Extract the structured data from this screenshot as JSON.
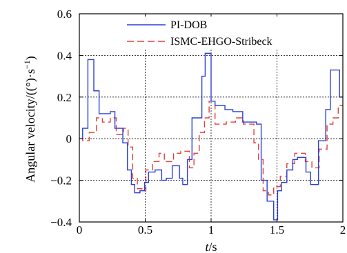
{
  "chart_data": {
    "type": "line",
    "xlabel_italic": "t",
    "xlabel_unit": "/s",
    "ylabel": "Angular velocity/((°)·s",
    "ylabel_sup": "−1",
    "ylabel_end": ")",
    "xlim": [
      0,
      2
    ],
    "ylim": [
      -0.4,
      0.6
    ],
    "x_ticks": [
      0,
      0.5,
      1,
      1.5,
      2
    ],
    "x_tick_labels": [
      "0",
      "0.5",
      "1",
      "1.5",
      "2"
    ],
    "y_ticks": [
      -0.4,
      -0.2,
      0,
      0.2,
      0.4,
      0.6
    ],
    "y_tick_labels": [
      "−0.4",
      "−0.2",
      "0",
      "0.2",
      "0.4",
      "0.6"
    ],
    "grid": true,
    "legend_position": "top-right",
    "series": [
      {
        "name": "PI-DOB",
        "color": "#2b3fd6",
        "style": "solid",
        "x": [
          0,
          0.025,
          0.025,
          0.065,
          0.065,
          0.11,
          0.11,
          0.15,
          0.15,
          0.235,
          0.235,
          0.27,
          0.27,
          0.33,
          0.33,
          0.365,
          0.365,
          0.395,
          0.395,
          0.42,
          0.42,
          0.46,
          0.46,
          0.495,
          0.495,
          0.525,
          0.525,
          0.575,
          0.575,
          0.625,
          0.625,
          0.66,
          0.66,
          0.705,
          0.705,
          0.76,
          0.76,
          0.785,
          0.785,
          0.82,
          0.82,
          0.855,
          0.855,
          0.93,
          0.93,
          0.955,
          0.955,
          1.0,
          1.0,
          1.03,
          1.03,
          1.105,
          1.105,
          1.165,
          1.165,
          1.24,
          1.24,
          1.345,
          1.345,
          1.38,
          1.38,
          1.425,
          1.425,
          1.475,
          1.475,
          1.505,
          1.505,
          1.535,
          1.535,
          1.575,
          1.575,
          1.62,
          1.62,
          1.655,
          1.655,
          1.72,
          1.72,
          1.755,
          1.755,
          1.815,
          1.815,
          1.87,
          1.87,
          1.905,
          1.905,
          1.975,
          1.975,
          2.0
        ],
        "values": [
          0.0,
          0.0,
          0.05,
          0.05,
          0.38,
          0.38,
          0.23,
          0.23,
          0.12,
          0.12,
          0.13,
          0.13,
          0.05,
          0.05,
          -0.02,
          -0.02,
          -0.15,
          -0.15,
          -0.22,
          -0.22,
          -0.26,
          -0.26,
          -0.25,
          -0.25,
          -0.21,
          -0.21,
          -0.16,
          -0.16,
          -0.15,
          -0.15,
          -0.2,
          -0.2,
          -0.19,
          -0.19,
          -0.13,
          -0.13,
          -0.19,
          -0.19,
          -0.22,
          -0.22,
          -0.1,
          -0.1,
          0.1,
          0.1,
          0.3,
          0.3,
          0.41,
          0.41,
          0.18,
          0.18,
          0.16,
          0.16,
          0.14,
          0.14,
          0.13,
          0.13,
          0.08,
          0.08,
          0.07,
          0.07,
          -0.2,
          -0.2,
          -0.3,
          -0.3,
          -0.39,
          -0.39,
          -0.25,
          -0.25,
          -0.21,
          -0.21,
          -0.15,
          -0.15,
          -0.1,
          -0.1,
          -0.09,
          -0.09,
          -0.16,
          -0.16,
          -0.22,
          -0.22,
          -0.01,
          -0.01,
          0.14,
          0.14,
          0.33,
          0.33,
          0.2,
          0.2
        ]
      },
      {
        "name": "ISMC-EHGO-Stribeck",
        "color": "#e0403a",
        "style": "dashed",
        "x": [
          0,
          0.025,
          0.025,
          0.075,
          0.075,
          0.13,
          0.13,
          0.175,
          0.175,
          0.235,
          0.235,
          0.28,
          0.28,
          0.335,
          0.335,
          0.37,
          0.37,
          0.405,
          0.405,
          0.44,
          0.44,
          0.475,
          0.475,
          0.505,
          0.505,
          0.555,
          0.555,
          0.605,
          0.605,
          0.645,
          0.645,
          0.715,
          0.715,
          0.77,
          0.77,
          0.835,
          0.835,
          0.87,
          0.87,
          0.91,
          0.91,
          0.95,
          0.95,
          0.985,
          0.985,
          1.03,
          1.03,
          1.115,
          1.115,
          1.185,
          1.185,
          1.245,
          1.245,
          1.325,
          1.325,
          1.36,
          1.36,
          1.395,
          1.395,
          1.435,
          1.435,
          1.475,
          1.475,
          1.525,
          1.525,
          1.575,
          1.575,
          1.635,
          1.635,
          1.715,
          1.715,
          1.765,
          1.765,
          1.82,
          1.82,
          1.88,
          1.88,
          1.925,
          1.925,
          1.965,
          1.965,
          2.0
        ],
        "values": [
          0.0,
          0.0,
          -0.01,
          -0.01,
          0.03,
          0.03,
          0.1,
          0.1,
          0.08,
          0.08,
          0.1,
          0.1,
          0.02,
          0.02,
          0.05,
          0.05,
          -0.04,
          -0.04,
          -0.19,
          -0.19,
          -0.24,
          -0.24,
          -0.25,
          -0.25,
          -0.15,
          -0.15,
          -0.11,
          -0.11,
          -0.07,
          -0.07,
          -0.11,
          -0.11,
          -0.07,
          -0.07,
          -0.06,
          -0.06,
          -0.14,
          -0.14,
          -0.07,
          -0.07,
          0.03,
          0.03,
          0.1,
          0.1,
          0.18,
          0.18,
          0.07,
          0.07,
          0.08,
          0.08,
          0.1,
          0.1,
          0.07,
          0.07,
          -0.02,
          -0.02,
          -0.1,
          -0.1,
          -0.25,
          -0.25,
          -0.27,
          -0.27,
          -0.23,
          -0.23,
          -0.18,
          -0.18,
          -0.12,
          -0.12,
          -0.07,
          -0.07,
          -0.11,
          -0.11,
          -0.14,
          -0.14,
          -0.05,
          -0.05,
          0.07,
          0.07,
          0.1,
          0.1,
          0.16,
          0.16
        ]
      }
    ]
  }
}
